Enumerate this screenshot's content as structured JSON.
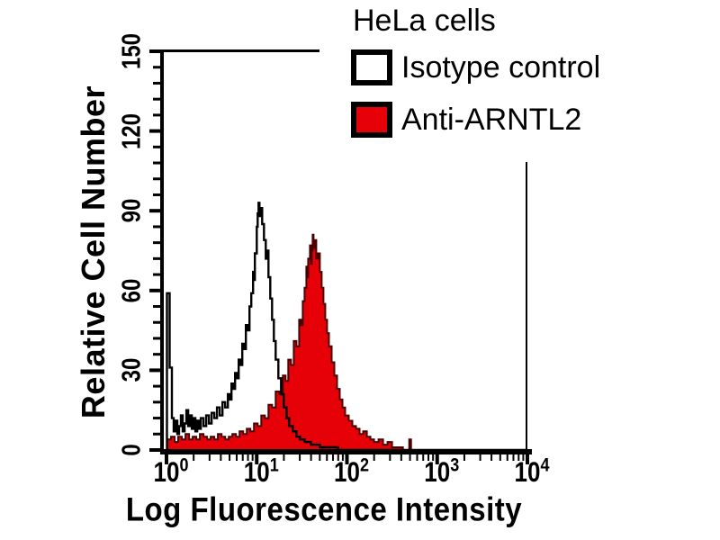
{
  "chart_data": {
    "type": "area",
    "title": "HeLa cells",
    "xlabel": "Log Fluorescence Intensity",
    "ylabel": "Relative Cell Number",
    "x_scale": "log10",
    "xlim_log_exponents": [
      0,
      4
    ],
    "x_tick_exponents": [
      0,
      1,
      2,
      3,
      4
    ],
    "ylim": [
      0,
      150
    ],
    "y_ticks": [
      0,
      30,
      60,
      90,
      120,
      150
    ],
    "y_minor_step": 6,
    "grid": "off",
    "legend_position": "top-right",
    "legend": [
      {
        "label": "Isotype control",
        "fill": "#ffffff",
        "stroke": "#000000"
      },
      {
        "label": "Anti-ARNTL2",
        "fill": "#e60008",
        "stroke": "#000000"
      }
    ],
    "series": [
      {
        "name": "Isotype control",
        "style": "open",
        "line_color": "#000000",
        "peak": {
          "x_log": 1.02,
          "count": 93
        },
        "points_log_count": [
          [
            0.0,
            0
          ],
          [
            0.005,
            59
          ],
          [
            0.035,
            31
          ],
          [
            0.06,
            12
          ],
          [
            0.08,
            7
          ],
          [
            0.1,
            11
          ],
          [
            0.12,
            6
          ],
          [
            0.14,
            9
          ],
          [
            0.16,
            13
          ],
          [
            0.18,
            7
          ],
          [
            0.2,
            10
          ],
          [
            0.22,
            15
          ],
          [
            0.24,
            9
          ],
          [
            0.26,
            13
          ],
          [
            0.28,
            8
          ],
          [
            0.3,
            12
          ],
          [
            0.32,
            7
          ],
          [
            0.34,
            11
          ],
          [
            0.36,
            8
          ],
          [
            0.38,
            12
          ],
          [
            0.41,
            9
          ],
          [
            0.44,
            13
          ],
          [
            0.47,
            10
          ],
          [
            0.5,
            14
          ],
          [
            0.53,
            12
          ],
          [
            0.56,
            16
          ],
          [
            0.59,
            13
          ],
          [
            0.62,
            18
          ],
          [
            0.65,
            16
          ],
          [
            0.68,
            21
          ],
          [
            0.7,
            19
          ],
          [
            0.72,
            25
          ],
          [
            0.74,
            23
          ],
          [
            0.76,
            29
          ],
          [
            0.78,
            27
          ],
          [
            0.8,
            34
          ],
          [
            0.82,
            32
          ],
          [
            0.84,
            40
          ],
          [
            0.86,
            38
          ],
          [
            0.88,
            47
          ],
          [
            0.9,
            45
          ],
          [
            0.92,
            54
          ],
          [
            0.94,
            59
          ],
          [
            0.96,
            67
          ],
          [
            0.97,
            64
          ],
          [
            0.98,
            74
          ],
          [
            1.0,
            84
          ],
          [
            1.01,
            89
          ],
          [
            1.02,
            93
          ],
          [
            1.03,
            88
          ],
          [
            1.045,
            91
          ],
          [
            1.06,
            85
          ],
          [
            1.08,
            79
          ],
          [
            1.1,
            72
          ],
          [
            1.115,
            75
          ],
          [
            1.13,
            65
          ],
          [
            1.15,
            57
          ],
          [
            1.17,
            49
          ],
          [
            1.19,
            41
          ],
          [
            1.21,
            34
          ],
          [
            1.24,
            27
          ],
          [
            1.27,
            21
          ],
          [
            1.3,
            16
          ],
          [
            1.33,
            12
          ],
          [
            1.36,
            9
          ],
          [
            1.4,
            7
          ],
          [
            1.44,
            5
          ],
          [
            1.48,
            4
          ],
          [
            1.53,
            3
          ],
          [
            1.6,
            2
          ],
          [
            1.7,
            1
          ],
          [
            1.8,
            1
          ],
          [
            1.9,
            0
          ],
          [
            4.0,
            0
          ]
        ]
      },
      {
        "name": "Anti-ARNTL2",
        "style": "filled",
        "fill_color": "#e60008",
        "line_color": "#4a0000",
        "peak": {
          "x_log": 1.62,
          "count": 81
        },
        "points_log_count": [
          [
            0.0,
            0
          ],
          [
            0.01,
            4
          ],
          [
            0.05,
            5
          ],
          [
            0.09,
            3
          ],
          [
            0.13,
            5
          ],
          [
            0.17,
            4
          ],
          [
            0.21,
            6
          ],
          [
            0.25,
            4
          ],
          [
            0.29,
            5
          ],
          [
            0.33,
            4
          ],
          [
            0.37,
            6
          ],
          [
            0.41,
            5
          ],
          [
            0.45,
            4
          ],
          [
            0.49,
            5
          ],
          [
            0.53,
            4
          ],
          [
            0.57,
            6
          ],
          [
            0.61,
            5
          ],
          [
            0.65,
            4
          ],
          [
            0.69,
            5
          ],
          [
            0.73,
            6
          ],
          [
            0.77,
            5
          ],
          [
            0.81,
            7
          ],
          [
            0.85,
            6
          ],
          [
            0.89,
            8
          ],
          [
            0.93,
            7
          ],
          [
            0.97,
            10
          ],
          [
            1.01,
            9
          ],
          [
            1.05,
            13
          ],
          [
            1.09,
            12
          ],
          [
            1.13,
            17
          ],
          [
            1.17,
            16
          ],
          [
            1.21,
            22
          ],
          [
            1.25,
            21
          ],
          [
            1.29,
            28
          ],
          [
            1.32,
            26
          ],
          [
            1.35,
            34
          ],
          [
            1.38,
            32
          ],
          [
            1.41,
            41
          ],
          [
            1.44,
            39
          ],
          [
            1.47,
            49
          ],
          [
            1.49,
            47
          ],
          [
            1.51,
            56
          ],
          [
            1.53,
            61
          ],
          [
            1.55,
            69
          ],
          [
            1.56,
            65
          ],
          [
            1.57,
            72
          ],
          [
            1.59,
            77
          ],
          [
            1.6,
            70
          ],
          [
            1.61,
            75
          ],
          [
            1.62,
            81
          ],
          [
            1.63,
            76
          ],
          [
            1.645,
            79
          ],
          [
            1.66,
            72
          ],
          [
            1.68,
            74
          ],
          [
            1.7,
            67
          ],
          [
            1.72,
            61
          ],
          [
            1.74,
            55
          ],
          [
            1.76,
            49
          ],
          [
            1.78,
            44
          ],
          [
            1.8,
            39
          ],
          [
            1.83,
            33
          ],
          [
            1.86,
            28
          ],
          [
            1.89,
            23
          ],
          [
            1.92,
            19
          ],
          [
            1.95,
            16
          ],
          [
            1.98,
            13
          ],
          [
            2.02,
            11
          ],
          [
            2.06,
            9
          ],
          [
            2.1,
            8
          ],
          [
            2.14,
            6
          ],
          [
            2.18,
            7
          ],
          [
            2.22,
            5
          ],
          [
            2.26,
            4
          ],
          [
            2.3,
            3
          ],
          [
            2.35,
            4
          ],
          [
            2.4,
            2
          ],
          [
            2.45,
            3
          ],
          [
            2.5,
            1
          ],
          [
            2.56,
            1
          ],
          [
            2.62,
            0
          ],
          [
            2.67,
            0
          ],
          [
            2.69,
            4
          ],
          [
            2.71,
            0
          ],
          [
            3.2,
            0
          ],
          [
            4.0,
            0
          ]
        ]
      }
    ]
  },
  "colors": {
    "background": "#ffffff",
    "axis": "#000000",
    "text": "#000000",
    "isotype_line": "#000000",
    "anti_arntl2_fill": "#e60008",
    "anti_arntl2_outline": "#4a0000"
  }
}
